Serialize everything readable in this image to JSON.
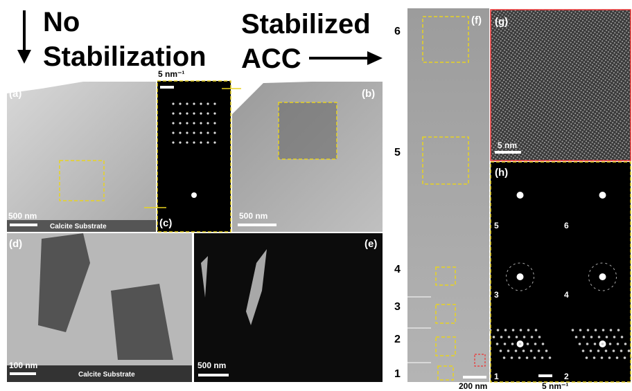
{
  "header": {
    "left_line1": "No",
    "left_line2": "Stabilization",
    "right_line1": "Stabilized",
    "right_line2": "ACC"
  },
  "panels": {
    "a": {
      "label": "(a)",
      "scale_bar": "500 nm",
      "caption": "Calcite Substrate"
    },
    "b": {
      "label": "(b)",
      "scale_bar": "500 nm"
    },
    "c": {
      "label": "(c)",
      "scale_bar": "5 nm⁻¹"
    },
    "d": {
      "label": "(d)",
      "scale_bar": "100 nm",
      "caption": "Calcite Substrate"
    },
    "e": {
      "label": "(e)",
      "scale_bar": "500 nm"
    },
    "f": {
      "label": "(f)",
      "scale_bar": "200 nm",
      "regions": [
        "6",
        "5",
        "4",
        "3",
        "2",
        "1"
      ]
    },
    "g": {
      "label": "(g)",
      "scale_bar": "5 nm"
    },
    "h": {
      "label": "(h)",
      "scale_bar": "5 nm⁻¹",
      "patterns": [
        "5",
        "6",
        "3",
        "4",
        "1",
        "2"
      ]
    }
  }
}
